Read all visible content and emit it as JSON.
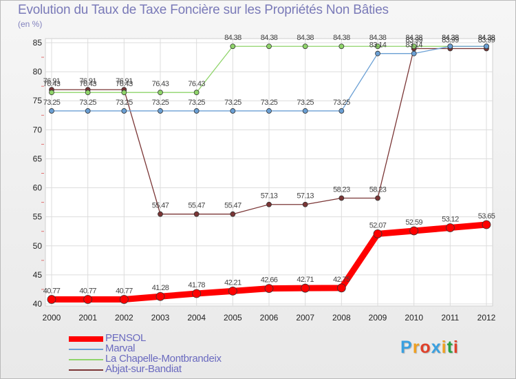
{
  "chart_data": {
    "type": "line",
    "title": "Evolution du Taux de Taxe Foncière sur les Propriétés Non Bâties",
    "unit_label": "(en %)",
    "xlabel": "",
    "ylabel": "(en %)",
    "x": [
      "2000",
      "2001",
      "2002",
      "2003",
      "2004",
      "2005",
      "2006",
      "2007",
      "2008",
      "2009",
      "2010",
      "2011",
      "2012"
    ],
    "ylim": [
      40,
      85
    ],
    "yticks": [
      40,
      45,
      50,
      55,
      60,
      65,
      70,
      75,
      80,
      85
    ],
    "grid": true,
    "legend_position": "bottom-left",
    "series": [
      {
        "name": "PENSOL",
        "color": "#ff0000",
        "values": [
          40.77,
          40.77,
          40.77,
          41.28,
          41.78,
          42.21,
          42.66,
          42.71,
          42.75,
          52.07,
          52.59,
          53.12,
          53.65
        ],
        "labels": [
          "40.77",
          "40.77",
          "40.77",
          "41.28",
          "41.78",
          "42.21",
          "42.66",
          "42.71",
          "42.75",
          "52.07",
          "52.59",
          "53.12",
          "53.65"
        ]
      },
      {
        "name": "Marval",
        "color": "#6a9fd4",
        "values": [
          73.25,
          73.25,
          73.25,
          73.25,
          73.25,
          73.25,
          73.25,
          73.25,
          73.25,
          83.14,
          83.14,
          84.38,
          84.38
        ],
        "labels": [
          "73.25",
          "73.25",
          "73.25",
          "73.25",
          "73.25",
          "73.25",
          "73.25",
          "73.25",
          "73.25",
          "83.14",
          "83.14",
          "84.38",
          "84.38"
        ]
      },
      {
        "name": "La Chapelle-Montbrandeix",
        "color": "#8fd46a",
        "values": [
          76.43,
          76.43,
          76.43,
          76.43,
          76.43,
          84.38,
          84.38,
          84.38,
          84.38,
          84.38,
          84.38,
          84.38,
          84.38
        ],
        "labels": [
          "76.43",
          "76.43",
          "76.43",
          "76.43",
          "76.43",
          "84.38",
          "84.38",
          "84.38",
          "84.38",
          "84.38",
          "84.38",
          "84.38",
          "84.38"
        ]
      },
      {
        "name": "Abjat-sur-Bandiat",
        "color": "#7a3535",
        "values": [
          76.91,
          76.91,
          76.91,
          55.47,
          55.47,
          55.47,
          57.13,
          57.13,
          58.23,
          58.23,
          83.99,
          83.99,
          83.99
        ],
        "labels": [
          "76.91",
          "76.91",
          "76.91",
          "55.47",
          "55.47",
          "55.47",
          "57.13",
          "57.13",
          "58.23",
          "58.23",
          "83.99",
          "83.99",
          "83.99"
        ]
      }
    ]
  },
  "logo": {
    "letters": [
      "P",
      "r",
      "o",
      "x",
      "i",
      "t",
      "i"
    ],
    "colors": [
      "#3aa0e0",
      "#f0a020",
      "#e0402a",
      "#3aa0e0",
      "#f0a020",
      "#2aa040",
      "#e0402a"
    ]
  }
}
